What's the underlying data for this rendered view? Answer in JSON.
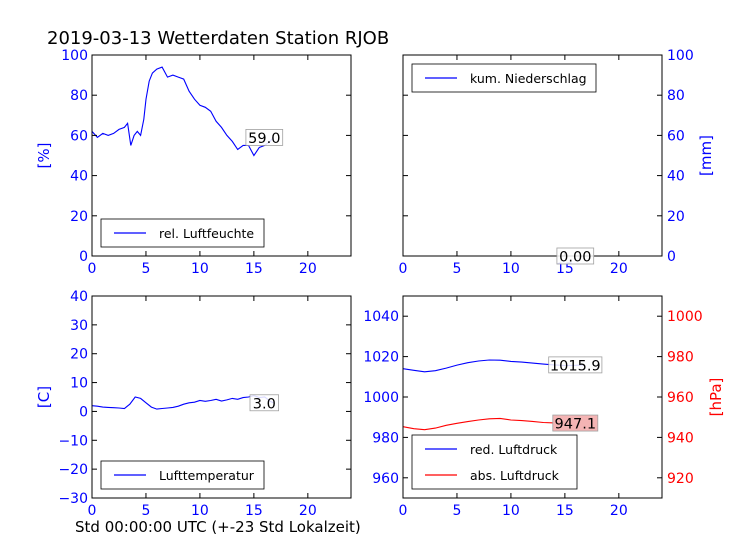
{
  "title": "2019-03-13 Wetterdaten Station RJOB",
  "xlabel": "Std 00:00:00 UTC (+-23 Std Lokalzeit)",
  "colors": {
    "axis_blue": "#0000ff",
    "axis_red": "#ff0000",
    "annotation_fill_red": "#f4b4b4"
  },
  "chart_data": [
    {
      "type": "line",
      "position": "top-left",
      "ylabel": "[%]",
      "xlim": [
        0,
        24
      ],
      "ylim": [
        0,
        100
      ],
      "xticks": [
        "0",
        "5",
        "10",
        "15",
        "20"
      ],
      "yticks": [
        "0",
        "20",
        "40",
        "60",
        "80",
        "100"
      ],
      "legend": {
        "entries": [
          "rel. Luftfeuchte"
        ],
        "placement": "lower-left"
      },
      "annotation": "59.0",
      "series": [
        {
          "name": "rel. Luftfeuchte",
          "color": "#0000ff",
          "x": [
            0,
            0.5,
            1,
            1.5,
            2,
            2.5,
            3,
            3.3,
            3.6,
            3.9,
            4.2,
            4.5,
            4.8,
            5.0,
            5.3,
            5.6,
            6.0,
            6.5,
            7.0,
            7.5,
            8.0,
            8.5,
            9.0,
            9.5,
            10.0,
            10.5,
            11.0,
            11.5,
            12.0,
            12.5,
            13.0,
            13.5,
            14.0,
            14.5,
            15.0,
            15.5,
            16.0,
            16.5,
            16.8
          ],
          "y": [
            62,
            59,
            61,
            60,
            61,
            63,
            64,
            66,
            55,
            60,
            62,
            60,
            68,
            78,
            87,
            91,
            93,
            94,
            89,
            90,
            89,
            88,
            82,
            78,
            75,
            74,
            72,
            67,
            64,
            60,
            57,
            53,
            55,
            55,
            50,
            54,
            55,
            57,
            59
          ]
        }
      ]
    },
    {
      "type": "line",
      "position": "top-right",
      "ylabel": "[mm]",
      "xlim": [
        0,
        24
      ],
      "ylim": [
        0,
        100
      ],
      "xticks": [
        "0",
        "5",
        "10",
        "15",
        "20"
      ],
      "yticks": [
        "0",
        "20",
        "40",
        "60",
        "80",
        "100"
      ],
      "legend": {
        "entries": [
          "kum. Niederschlag"
        ],
        "placement": "upper-left"
      },
      "annotation": "0.00",
      "series": [
        {
          "name": "kum. Niederschlag",
          "color": "#0000ff",
          "x": [
            0,
            4,
            8,
            12,
            16.8
          ],
          "y": [
            0,
            0,
            0,
            0,
            0
          ]
        }
      ]
    },
    {
      "type": "line",
      "position": "bottom-left",
      "ylabel": "[C]",
      "xlim": [
        0,
        24
      ],
      "ylim": [
        -30,
        40
      ],
      "xticks": [
        "0",
        "5",
        "10",
        "15",
        "20"
      ],
      "yticks": [
        "−30",
        "−20",
        "−10",
        "0",
        "10",
        "20",
        "30",
        "40"
      ],
      "legend": {
        "entries": [
          "Lufttemperatur"
        ],
        "placement": "lower-left"
      },
      "annotation": "3.0",
      "series": [
        {
          "name": "Lufttemperatur",
          "color": "#0000ff",
          "x": [
            0,
            0.5,
            1,
            1.5,
            2,
            2.5,
            3,
            3.5,
            4,
            4.5,
            5,
            5.5,
            6,
            6.5,
            7,
            7.5,
            8,
            8.5,
            9,
            9.5,
            10,
            10.5,
            11,
            11.5,
            12,
            12.5,
            13,
            13.5,
            14,
            14.5,
            15,
            15.5,
            16,
            16.5,
            16.8
          ],
          "y": [
            2,
            1.8,
            1.5,
            1.4,
            1.3,
            1.2,
            1.0,
            2.5,
            5.0,
            4.5,
            3.0,
            1.5,
            0.8,
            1.0,
            1.2,
            1.4,
            1.8,
            2.5,
            3.0,
            3.2,
            3.8,
            3.5,
            3.8,
            4.2,
            3.6,
            4.0,
            4.5,
            4.2,
            4.8,
            5.0,
            5.5,
            4.8,
            5.0,
            3.5,
            3.0
          ]
        }
      ]
    },
    {
      "type": "line",
      "position": "bottom-right",
      "xlim": [
        0,
        24
      ],
      "ylim": [
        950,
        1050
      ],
      "ylim_right": [
        910,
        1010
      ],
      "ylabel_right": "[hPa]",
      "xticks": [
        "0",
        "5",
        "10",
        "15",
        "20"
      ],
      "yticks": [
        "960",
        "980",
        "1000",
        "1020",
        "1040"
      ],
      "yticks_right": [
        "920",
        "940",
        "960",
        "980",
        "1000"
      ],
      "legend": {
        "entries": [
          "red. Luftdruck",
          "abs. Luftdruck"
        ],
        "placement": "lower-left"
      },
      "annotations": [
        "1015.9",
        "947.1"
      ],
      "series": [
        {
          "name": "red. Luftdruck",
          "color": "#0000ff",
          "axis": "left",
          "x": [
            0,
            1,
            2,
            3,
            4,
            5,
            6,
            7,
            8,
            9,
            10,
            11,
            12,
            13,
            14,
            15,
            16,
            16.8
          ],
          "y": [
            1014,
            1013.2,
            1012.5,
            1013,
            1014.3,
            1015.8,
            1017,
            1017.8,
            1018.3,
            1018.2,
            1017.6,
            1017.3,
            1016.8,
            1016.3,
            1015.9,
            1015.6,
            1015.7,
            1015.9
          ]
        },
        {
          "name": "abs. Luftdruck",
          "color": "#ff0000",
          "axis": "right",
          "x": [
            0,
            1,
            2,
            3,
            4,
            5,
            6,
            7,
            8,
            9,
            10,
            11,
            12,
            13,
            14,
            15,
            16,
            16.8
          ],
          "y": [
            945.3,
            944.3,
            943.8,
            944.6,
            946,
            947,
            947.8,
            948.6,
            949.2,
            949.4,
            948.6,
            948.3,
            947.9,
            947.4,
            947.2,
            946.9,
            947.0,
            947.1
          ]
        }
      ]
    }
  ]
}
